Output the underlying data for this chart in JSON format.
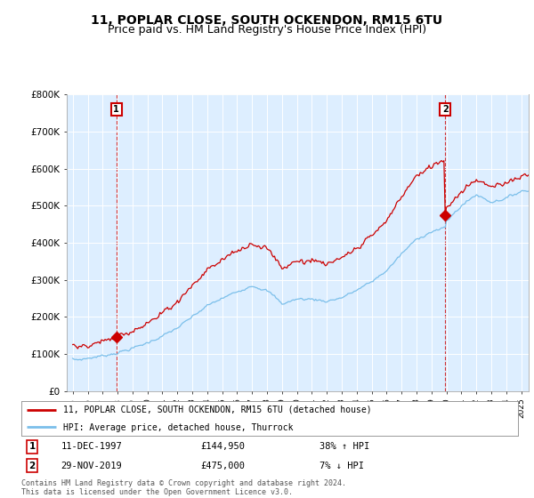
{
  "title": "11, POPLAR CLOSE, SOUTH OCKENDON, RM15 6TU",
  "subtitle": "Price paid vs. HM Land Registry's House Price Index (HPI)",
  "ylim": [
    0,
    800000
  ],
  "yticks": [
    0,
    100000,
    200000,
    300000,
    400000,
    500000,
    600000,
    700000,
    800000
  ],
  "ytick_labels": [
    "£0",
    "£100K",
    "£200K",
    "£300K",
    "£400K",
    "£500K",
    "£600K",
    "£700K",
    "£800K"
  ],
  "transaction1": {
    "date": "11-DEC-1997",
    "price": 144950,
    "label": "38% ↑ HPI",
    "year": 1997.92
  },
  "transaction2": {
    "date": "29-NOV-2019",
    "price": 475000,
    "label": "7% ↓ HPI",
    "year": 2019.92
  },
  "hpi_color": "#7bbfea",
  "price_color": "#cc0000",
  "plot_bg_color": "#ddeeff",
  "legend_label1": "11, POPLAR CLOSE, SOUTH OCKENDON, RM15 6TU (detached house)",
  "legend_label2": "HPI: Average price, detached house, Thurrock",
  "footnote": "Contains HM Land Registry data © Crown copyright and database right 2024.\nThis data is licensed under the Open Government Licence v3.0.",
  "background_color": "#ffffff",
  "grid_color": "#ffffff",
  "title_fontsize": 10,
  "subtitle_fontsize": 9
}
